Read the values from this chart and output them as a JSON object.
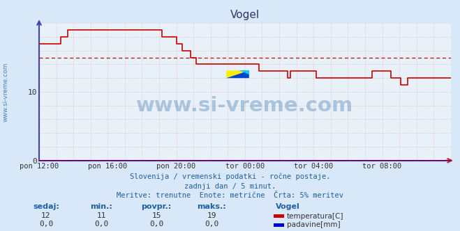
{
  "title": "Vogel",
  "bg_color": "#d8e8f8",
  "plot_bg_color": "#e8f0f8",
  "xlim": [
    0,
    288
  ],
  "ylim": [
    0,
    20
  ],
  "yticks": [
    0,
    10
  ],
  "xtick_labels": [
    "pon 12:00",
    "pon 16:00",
    "pon 20:00",
    "tor 00:00",
    "tor 04:00",
    "tor 08:00"
  ],
  "xtick_positions": [
    0,
    48,
    96,
    144,
    192,
    240
  ],
  "temp_color": "#cc0000",
  "rain_color": "#0000cc",
  "avg_line_color": "#cc0000",
  "avg_value": 15,
  "watermark_text": "www.si-vreme.com",
  "watermark_color": "#2060a0",
  "watermark_alpha": 0.3,
  "footer_line1": "Slovenija / vremenski podatki - ročne postaje.",
  "footer_line2": "zadnji dan / 5 minut.",
  "footer_line3": "Meritve: trenutne  Enote: metrične  Črta: 5% meritev",
  "footer_color": "#2060a0",
  "label_color": "#2060a0",
  "sidebar_text": "www.si-vreme.com",
  "sidebar_color": "#2060a0",
  "legend_title": "Vogel",
  "legend_entries": [
    "temperatura[C]",
    "padavine[mm]"
  ],
  "legend_colors": [
    "#cc0000",
    "#0000cc"
  ],
  "stats_headers": [
    "sedaj:",
    "min.:",
    "povpr.:",
    "maks.:"
  ],
  "stats_temp": [
    "12",
    "11",
    "15",
    "19"
  ],
  "stats_rain": [
    "0,0",
    "0,0",
    "0,0",
    "0,0"
  ],
  "temp_series": [
    [
      0,
      17
    ],
    [
      10,
      17
    ],
    [
      15,
      18
    ],
    [
      20,
      19
    ],
    [
      48,
      19
    ],
    [
      49,
      19
    ],
    [
      85,
      19
    ],
    [
      86,
      18
    ],
    [
      90,
      18
    ],
    [
      96,
      17
    ],
    [
      100,
      16
    ],
    [
      106,
      15
    ],
    [
      110,
      14
    ],
    [
      130,
      14
    ],
    [
      131,
      14
    ],
    [
      140,
      14
    ],
    [
      144,
      14
    ],
    [
      145,
      14
    ],
    [
      150,
      14
    ],
    [
      154,
      13
    ],
    [
      160,
      13
    ],
    [
      169,
      13
    ],
    [
      170,
      13
    ],
    [
      174,
      12
    ],
    [
      176,
      13
    ],
    [
      190,
      13
    ],
    [
      194,
      12
    ],
    [
      200,
      12
    ],
    [
      232,
      12
    ],
    [
      233,
      13
    ],
    [
      245,
      13
    ],
    [
      246,
      12
    ],
    [
      252,
      12
    ],
    [
      253,
      11
    ],
    [
      257,
      11
    ],
    [
      258,
      12
    ],
    [
      270,
      12
    ],
    [
      280,
      12
    ],
    [
      288,
      12
    ]
  ]
}
